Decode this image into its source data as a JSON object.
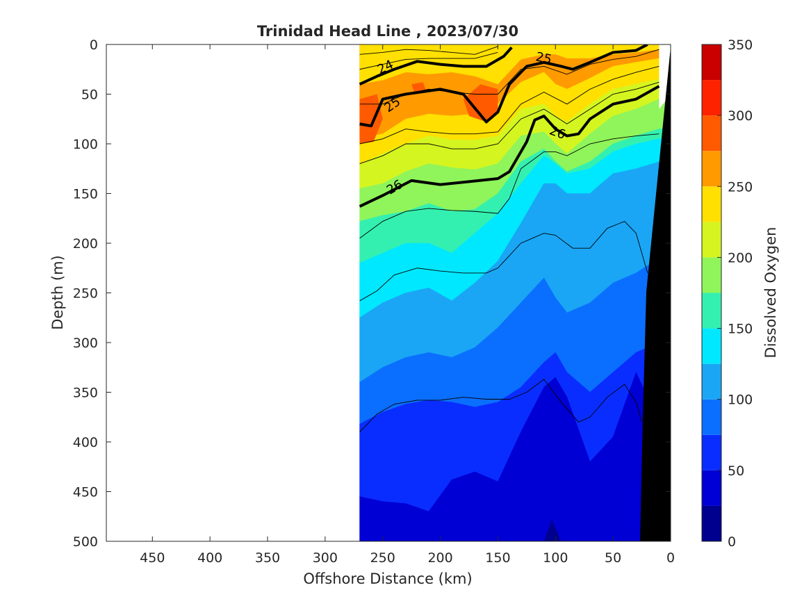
{
  "chart_data": {
    "type": "heatmap",
    "title": "Trinidad Head Line , 2023/07/30",
    "xlabel": "Offshore Distance (km)",
    "ylabel": "Depth (m)",
    "xlim": [
      490,
      0
    ],
    "ylim": [
      0,
      500
    ],
    "x_direction": "reversed",
    "y_direction": "reversed",
    "x_ticks": [
      "450",
      "400",
      "350",
      "300",
      "250",
      "200",
      "150",
      "100",
      "50",
      "0"
    ],
    "y_ticks": [
      "0",
      "50",
      "100",
      "150",
      "200",
      "250",
      "300",
      "350",
      "400",
      "450",
      "500"
    ],
    "colorbar": {
      "label": "Dissolved Oxygen",
      "range": [
        0,
        350
      ],
      "levels": [
        0,
        25,
        50,
        75,
        100,
        125,
        150,
        175,
        200,
        225,
        250,
        275,
        300,
        325,
        350
      ],
      "tick_labels": [
        "0",
        "50",
        "100",
        "150",
        "200",
        "250",
        "300",
        "350"
      ],
      "colors": [
        "#00008f",
        "#0000d4",
        "#0a2dff",
        "#0a6fff",
        "#1aa6f5",
        "#00e8ff",
        "#34f0b0",
        "#8ff55a",
        "#d5f520",
        "#ffe000",
        "#ff9a00",
        "#ff5a00",
        "#ff2200",
        "#c80000"
      ]
    },
    "data_extent_km": [
      270,
      0
    ],
    "density_contours": [
      {
        "value": "24",
        "label": "24",
        "points": [
          [
            270,
            40
          ],
          [
            255,
            32
          ],
          [
            240,
            25
          ],
          [
            220,
            17
          ],
          [
            200,
            20
          ],
          [
            180,
            22
          ],
          [
            160,
            22
          ],
          [
            145,
            12
          ],
          [
            138,
            3
          ]
        ]
      },
      {
        "value": "25",
        "label": "25",
        "points": [
          [
            270,
            80
          ],
          [
            260,
            82
          ],
          [
            250,
            55
          ],
          [
            230,
            50
          ],
          [
            200,
            45
          ],
          [
            180,
            50
          ],
          [
            160,
            78
          ],
          [
            150,
            68
          ],
          [
            140,
            40
          ],
          [
            125,
            22
          ],
          [
            110,
            18
          ],
          [
            95,
            22
          ],
          [
            85,
            25
          ],
          [
            70,
            18
          ],
          [
            50,
            8
          ],
          [
            30,
            6
          ],
          [
            20,
            0
          ]
        ]
      },
      {
        "value": "26",
        "label": "26",
        "points": [
          [
            270,
            163
          ],
          [
            250,
            152
          ],
          [
            225,
            137
          ],
          [
            200,
            141
          ],
          [
            175,
            138
          ],
          [
            150,
            135
          ],
          [
            140,
            128
          ],
          [
            125,
            98
          ],
          [
            118,
            76
          ],
          [
            110,
            72
          ],
          [
            100,
            85
          ],
          [
            90,
            92
          ],
          [
            80,
            90
          ],
          [
            70,
            75
          ],
          [
            50,
            60
          ],
          [
            30,
            55
          ],
          [
            10,
            42
          ]
        ]
      }
    ],
    "bathymetry": "black seafloor wedge near shore"
  }
}
